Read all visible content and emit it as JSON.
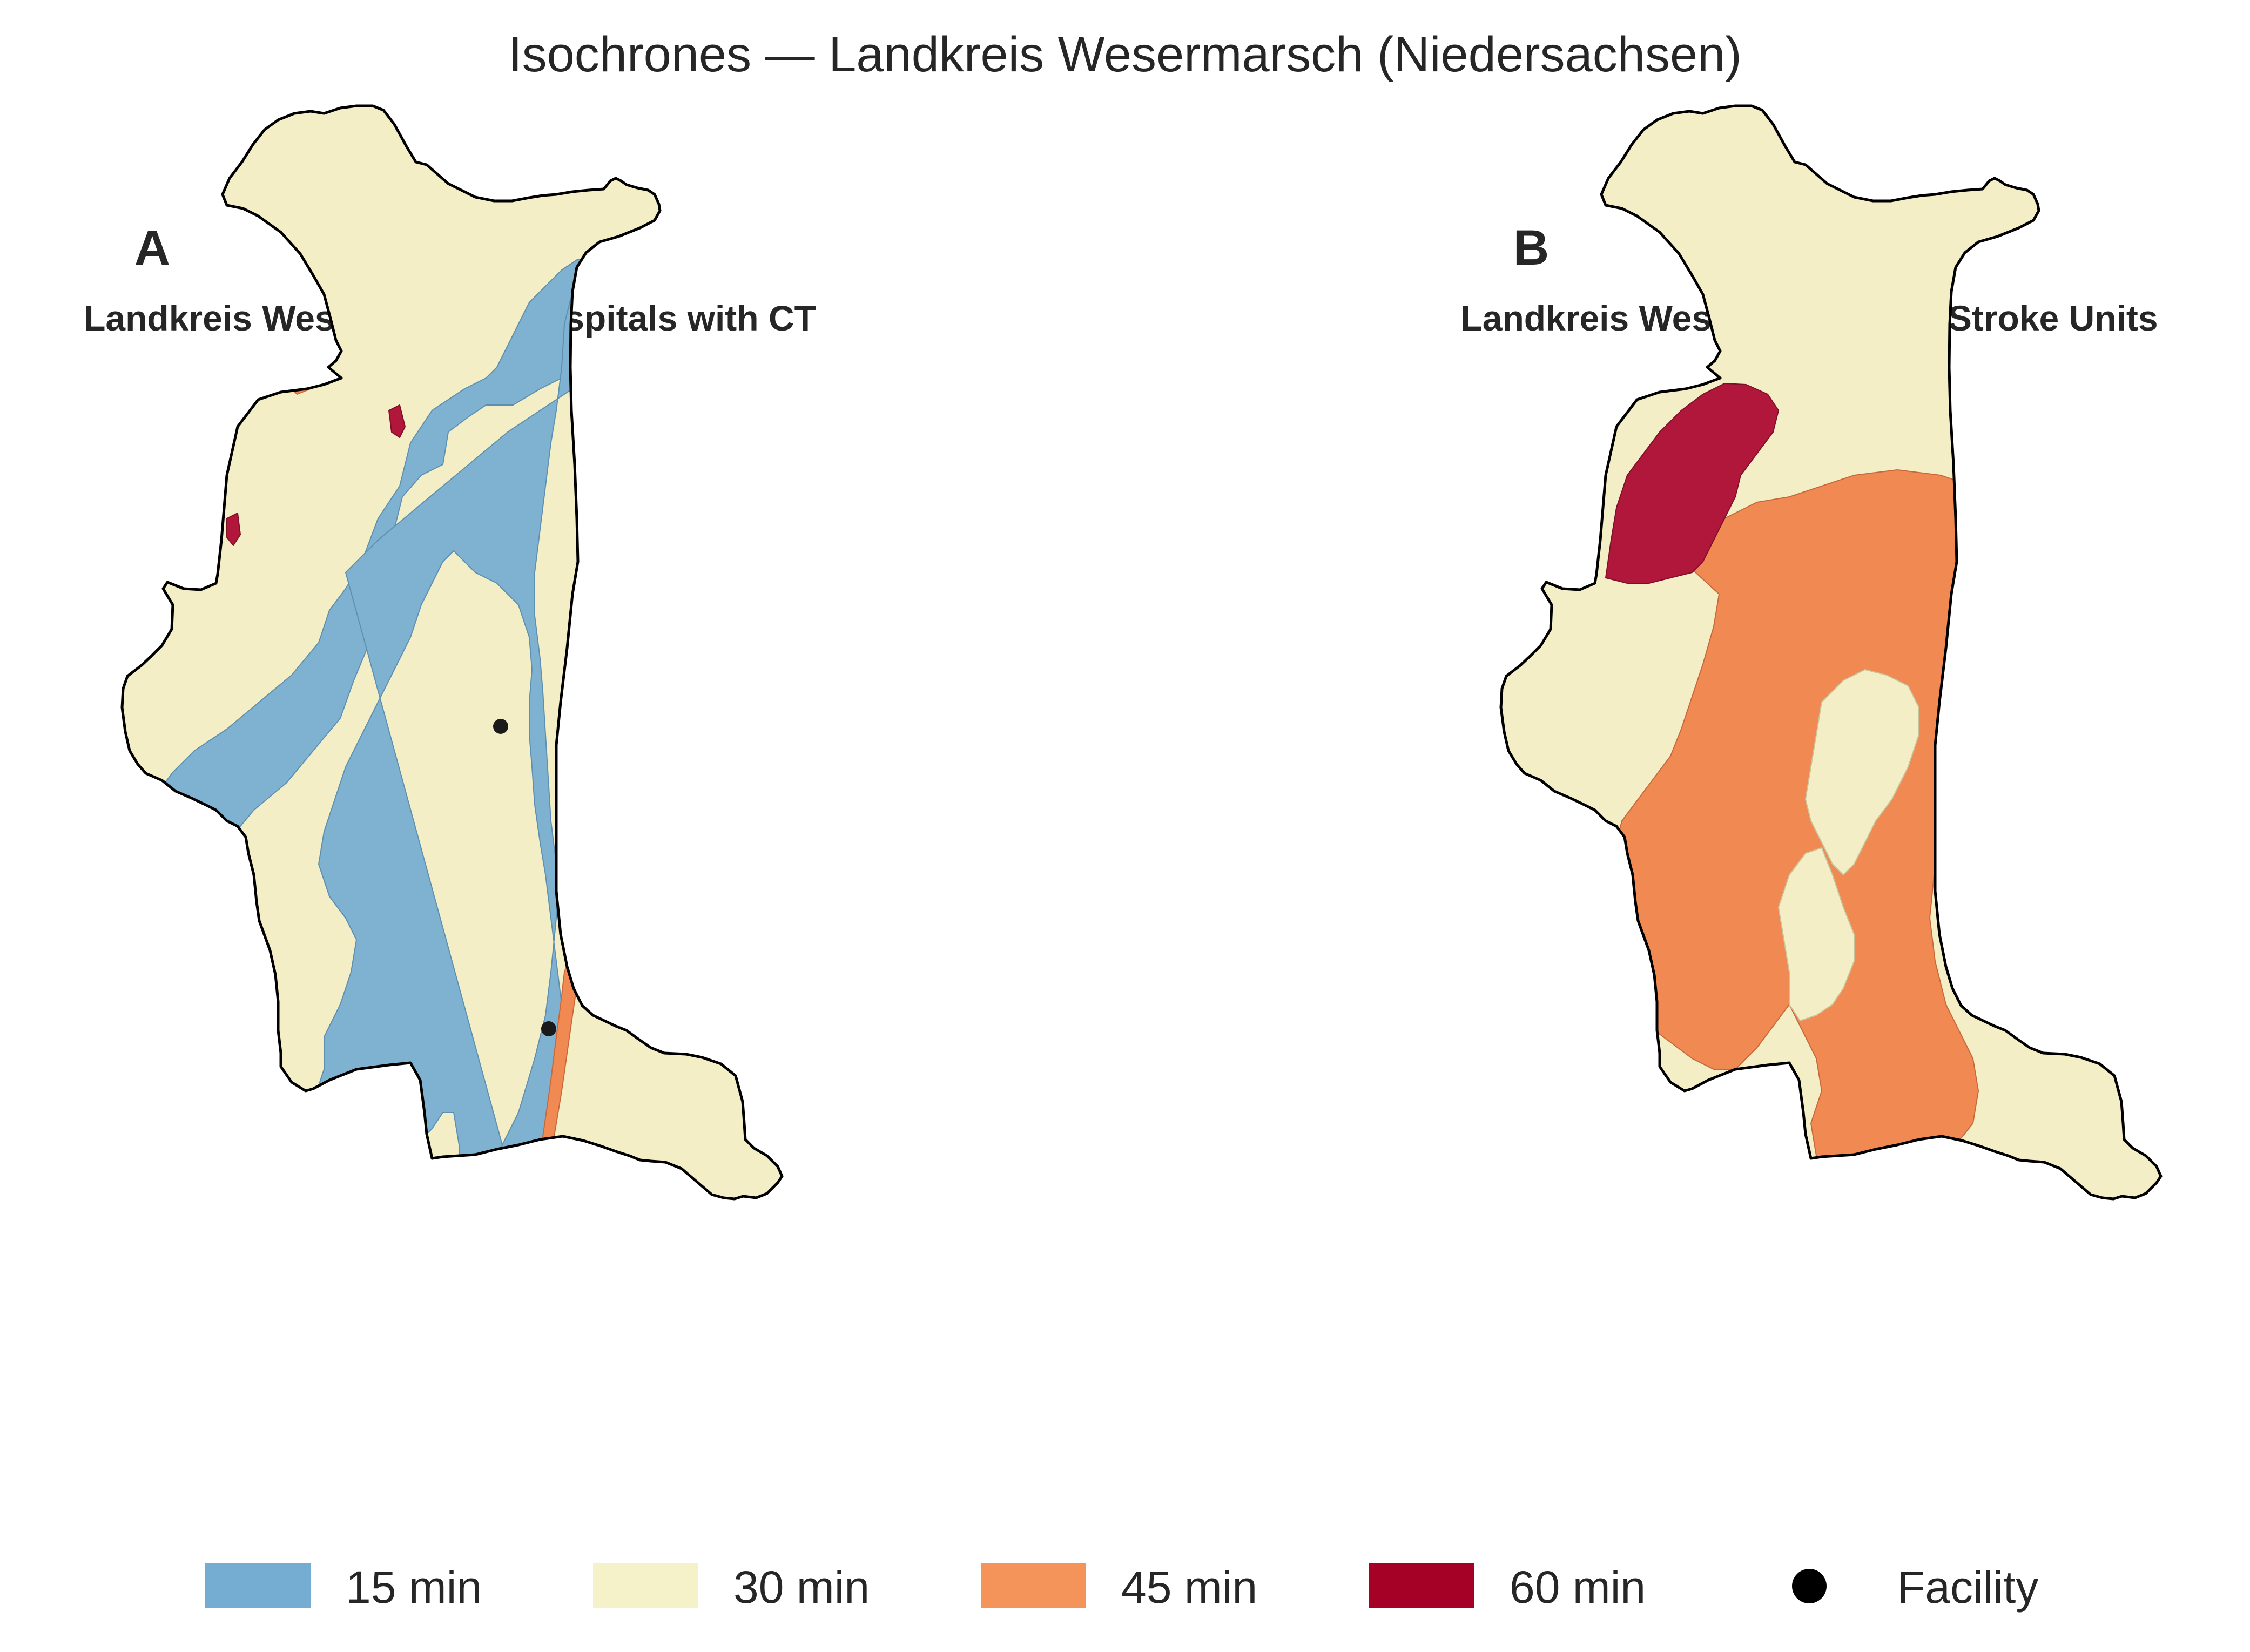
{
  "title": "Isochrones — Landkreis Wesermarsch (Niedersachsen)",
  "panels": [
    {
      "letter": "A",
      "title": "Landkreis Wesermarsch: Hospitals with CT"
    },
    {
      "letter": "B",
      "title": "Landkreis Wesermarsch: All Stroke Units"
    }
  ],
  "legend": [
    {
      "label": "15 min",
      "color": "#74add1",
      "kind": "patch"
    },
    {
      "label": "30 min",
      "color": "#f5f2c9",
      "kind": "patch"
    },
    {
      "label": "45 min",
      "color": "#f4935a",
      "kind": "patch"
    },
    {
      "label": "60 min",
      "color": "#a50026",
      "kind": "patch"
    },
    {
      "label": "Facility",
      "color": "#000000",
      "kind": "marker"
    }
  ],
  "colors": {
    "min15": "#7fb2d0",
    "min30": "#f3eec6",
    "min45": "#f08a52",
    "min60": "#b0173b",
    "outline": "#000000"
  },
  "facilities_panel_a": 2,
  "facilities_panel_b": 0
}
